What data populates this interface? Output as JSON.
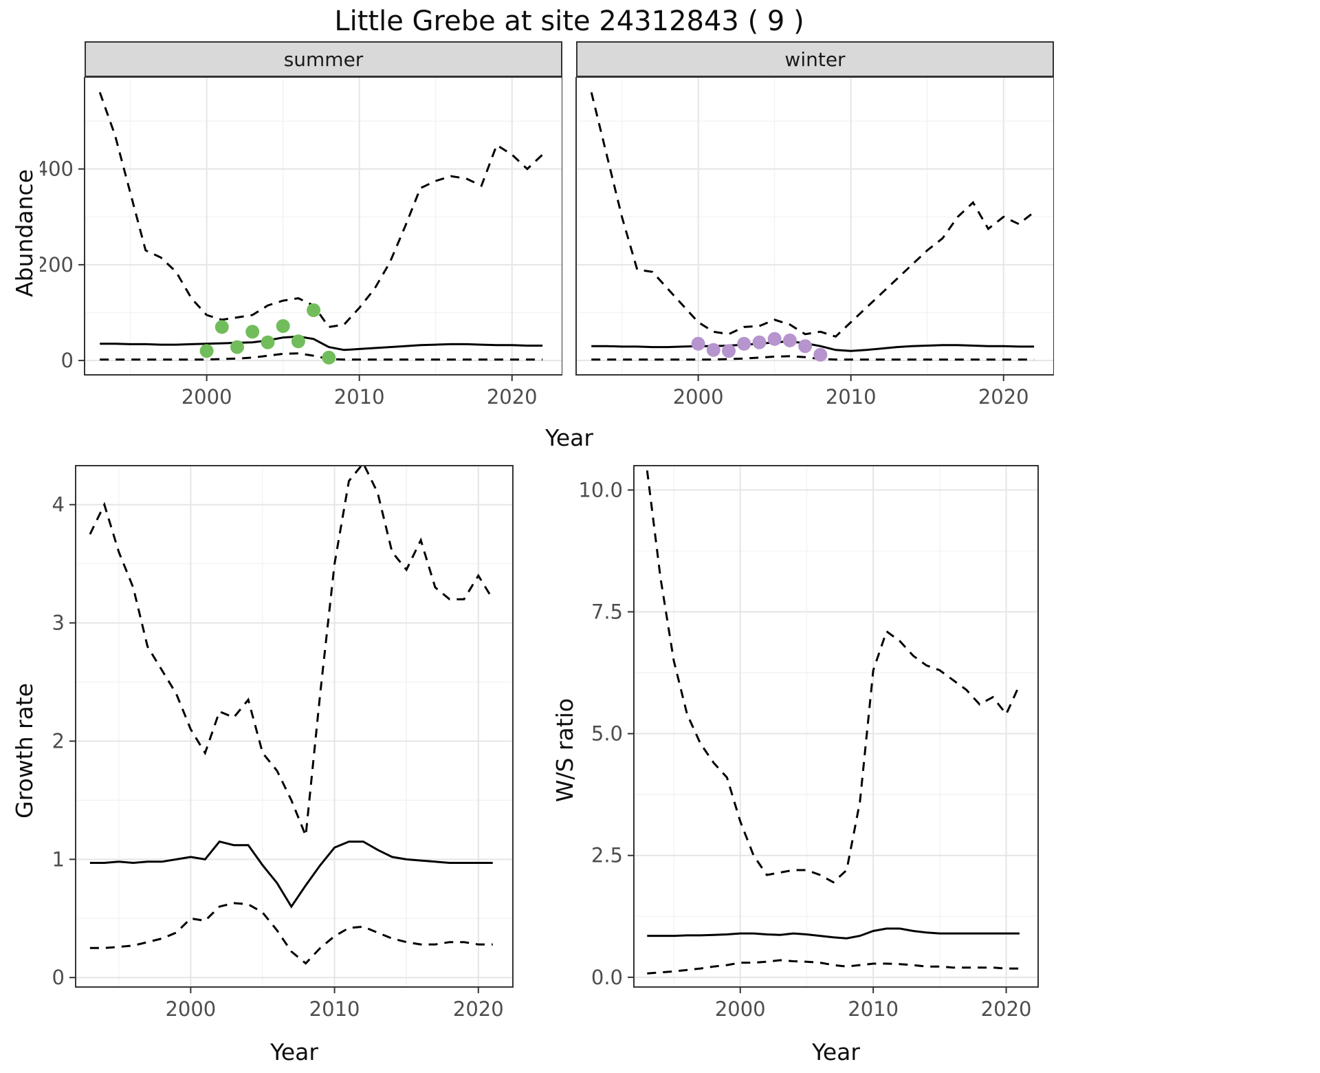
{
  "title": "Little Grebe at site 24312843 ( 9 )",
  "axes": {
    "abundance_ylabel": "Abundance",
    "top_xlabel": "Year",
    "growth_ylabel": "Growth rate",
    "growth_xlabel": "Year",
    "ws_ylabel": "W/S ratio",
    "ws_xlabel": "Year"
  },
  "facets": [
    {
      "label": "summer"
    },
    {
      "label": "winter"
    }
  ],
  "colors": {
    "line": "#000000",
    "grid_major": "#e5e5e5",
    "grid_minor": "#f2f2f2",
    "border": "#333333",
    "strip_bg": "#d9d9d9",
    "tick_text": "#4d4d4d",
    "summer_points": "#72BD5B",
    "winter_points": "#B694CD"
  },
  "chart_data": [
    {
      "id": "summer",
      "type": "line",
      "title": "summer",
      "xlabel": "Year",
      "ylabel": "Abundance",
      "xlim": [
        1992,
        2023.3
      ],
      "ylim": [
        -30,
        592
      ],
      "xticks": [
        2000,
        2010,
        2020
      ],
      "xtick_labels": [
        "2000",
        "2010",
        "2020"
      ],
      "yticks": [
        0,
        200,
        400
      ],
      "ytick_labels": [
        "0",
        "200",
        "400"
      ],
      "x": [
        1993,
        1994,
        1995,
        1996,
        1997,
        1998,
        1999,
        2000,
        2001,
        2002,
        2003,
        2004,
        2005,
        2006,
        2007,
        2008,
        2009,
        2010,
        2011,
        2012,
        2013,
        2014,
        2015,
        2016,
        2017,
        2018,
        2019,
        2020,
        2021,
        2022
      ],
      "series": [
        {
          "name": "upper_ci",
          "style": "dashed",
          "values": [
            560,
            470,
            350,
            230,
            215,
            185,
            130,
            95,
            85,
            90,
            95,
            115,
            125,
            130,
            115,
            70,
            75,
            110,
            150,
            205,
            280,
            360,
            375,
            385,
            380,
            365,
            450,
            430,
            400,
            430
          ]
        },
        {
          "name": "median",
          "style": "solid",
          "values": [
            35,
            35,
            34,
            34,
            33,
            33,
            34,
            35,
            36,
            37,
            38,
            42,
            48,
            50,
            45,
            28,
            22,
            24,
            26,
            28,
            30,
            32,
            33,
            34,
            34,
            33,
            32,
            32,
            31,
            31
          ]
        },
        {
          "name": "lower_ci",
          "style": "dashed",
          "values": [
            2,
            2,
            2,
            2,
            2,
            2,
            2,
            2,
            3,
            4,
            6,
            10,
            14,
            15,
            10,
            3,
            2,
            2,
            2,
            2,
            2,
            2,
            2,
            2,
            2,
            2,
            2,
            2,
            2,
            2
          ]
        }
      ],
      "points": {
        "name": "observed-counts",
        "color": "#72BD5B",
        "x": [
          2000,
          2001,
          2002,
          2003,
          2004,
          2005,
          2006,
          2007,
          2008
        ],
        "y": [
          20,
          70,
          28,
          60,
          38,
          72,
          40,
          105,
          6
        ]
      }
    },
    {
      "id": "winter",
      "type": "line",
      "title": "winter",
      "xlabel": "Year",
      "ylabel": "Abundance",
      "xlim": [
        1992,
        2023.3
      ],
      "ylim": [
        -30,
        592
      ],
      "xticks": [
        2000,
        2010,
        2020
      ],
      "xtick_labels": [
        "2000",
        "2010",
        "2020"
      ],
      "yticks": [
        0,
        200,
        400
      ],
      "ytick_labels": [
        "0",
        "200",
        "400"
      ],
      "x": [
        1993,
        1994,
        1995,
        1996,
        1997,
        1998,
        1999,
        2000,
        2001,
        2002,
        2003,
        2004,
        2005,
        2006,
        2007,
        2008,
        2009,
        2010,
        2011,
        2012,
        2013,
        2014,
        2015,
        2016,
        2017,
        2018,
        2019,
        2020,
        2021,
        2022
      ],
      "series": [
        {
          "name": "upper_ci",
          "style": "dashed",
          "values": [
            560,
            430,
            300,
            190,
            185,
            150,
            115,
            80,
            60,
            55,
            70,
            72,
            85,
            75,
            55,
            60,
            50,
            80,
            110,
            140,
            170,
            200,
            230,
            255,
            300,
            330,
            275,
            300,
            285,
            310
          ]
        },
        {
          "name": "median",
          "style": "solid",
          "values": [
            30,
            30,
            29,
            29,
            28,
            28,
            29,
            30,
            30,
            31,
            33,
            35,
            38,
            40,
            36,
            30,
            22,
            20,
            22,
            25,
            28,
            30,
            31,
            32,
            32,
            31,
            30,
            30,
            29,
            29
          ]
        },
        {
          "name": "lower_ci",
          "style": "dashed",
          "values": [
            2,
            2,
            2,
            2,
            2,
            2,
            2,
            2,
            2,
            3,
            4,
            6,
            8,
            9,
            7,
            3,
            2,
            2,
            2,
            2,
            2,
            2,
            2,
            2,
            2,
            2,
            2,
            2,
            2,
            2
          ]
        }
      ],
      "points": {
        "name": "observed-counts",
        "color": "#B694CD",
        "x": [
          2000,
          2001,
          2002,
          2003,
          2004,
          2005,
          2006,
          2007,
          2008
        ],
        "y": [
          35,
          22,
          20,
          35,
          38,
          45,
          42,
          30,
          12
        ]
      }
    },
    {
      "id": "growth",
      "type": "line",
      "title": "Growth rate",
      "xlabel": "Year",
      "ylabel": "Growth rate",
      "xlim": [
        1992,
        2022.4
      ],
      "ylim": [
        -0.08,
        4.33
      ],
      "xticks": [
        2000,
        2010,
        2020
      ],
      "xtick_labels": [
        "2000",
        "2010",
        "2020"
      ],
      "yticks": [
        0,
        1,
        2,
        3,
        4
      ],
      "ytick_labels": [
        "0",
        "1",
        "2",
        "3",
        "4"
      ],
      "x": [
        1993,
        1994,
        1995,
        1996,
        1997,
        1998,
        1999,
        2000,
        2001,
        2002,
        2003,
        2004,
        2005,
        2006,
        2007,
        2008,
        2009,
        2010,
        2011,
        2012,
        2013,
        2014,
        2015,
        2016,
        2017,
        2018,
        2019,
        2020,
        2021
      ],
      "series": [
        {
          "name": "upper_ci",
          "style": "dashed",
          "values": [
            3.75,
            4.0,
            3.6,
            3.3,
            2.8,
            2.6,
            2.4,
            2.1,
            1.9,
            2.25,
            2.2,
            2.35,
            1.9,
            1.75,
            1.5,
            1.2,
            2.4,
            3.5,
            4.2,
            4.35,
            4.1,
            3.6,
            3.45,
            3.7,
            3.3,
            3.2,
            3.2,
            3.4,
            3.2
          ]
        },
        {
          "name": "median",
          "style": "solid",
          "values": [
            0.97,
            0.97,
            0.98,
            0.97,
            0.98,
            0.98,
            1.0,
            1.02,
            1.0,
            1.15,
            1.12,
            1.12,
            0.95,
            0.8,
            0.6,
            0.78,
            0.95,
            1.1,
            1.15,
            1.15,
            1.08,
            1.02,
            1.0,
            0.99,
            0.98,
            0.97,
            0.97,
            0.97,
            0.97
          ]
        },
        {
          "name": "lower_ci",
          "style": "dashed",
          "values": [
            0.25,
            0.25,
            0.26,
            0.27,
            0.3,
            0.33,
            0.38,
            0.5,
            0.48,
            0.6,
            0.63,
            0.62,
            0.55,
            0.4,
            0.22,
            0.12,
            0.25,
            0.35,
            0.42,
            0.43,
            0.38,
            0.33,
            0.3,
            0.28,
            0.28,
            0.3,
            0.3,
            0.28,
            0.28
          ]
        }
      ]
    },
    {
      "id": "ws",
      "type": "line",
      "title": "W/S ratio",
      "xlabel": "Year",
      "ylabel": "W/S ratio",
      "xlim": [
        1992,
        2022.4
      ],
      "ylim": [
        -0.2,
        10.5
      ],
      "xticks": [
        2000,
        2010,
        2020
      ],
      "xtick_labels": [
        "2000",
        "2010",
        "2020"
      ],
      "yticks": [
        0,
        2.5,
        5,
        7.5,
        10
      ],
      "ytick_labels": [
        "0.0",
        "2.5",
        "5.0",
        "7.5",
        "10.0"
      ],
      "x": [
        1993,
        1994,
        1995,
        1996,
        1997,
        1998,
        1999,
        2000,
        2001,
        2002,
        2003,
        2004,
        2005,
        2006,
        2007,
        2008,
        2009,
        2010,
        2011,
        2012,
        2013,
        2014,
        2015,
        2016,
        2017,
        2018,
        2019,
        2020,
        2021
      ],
      "series": [
        {
          "name": "upper_ci",
          "style": "dashed",
          "values": [
            10.4,
            8.2,
            6.5,
            5.4,
            4.8,
            4.4,
            4.1,
            3.2,
            2.5,
            2.1,
            2.15,
            2.2,
            2.2,
            2.1,
            1.95,
            2.2,
            3.6,
            6.3,
            7.1,
            6.9,
            6.6,
            6.4,
            6.3,
            6.1,
            5.9,
            5.6,
            5.75,
            5.4,
            6.0
          ]
        },
        {
          "name": "median",
          "style": "solid",
          "values": [
            0.85,
            0.85,
            0.85,
            0.86,
            0.86,
            0.87,
            0.88,
            0.9,
            0.9,
            0.88,
            0.87,
            0.9,
            0.88,
            0.85,
            0.82,
            0.8,
            0.85,
            0.95,
            1.0,
            1.0,
            0.95,
            0.92,
            0.9,
            0.9,
            0.9,
            0.9,
            0.9,
            0.9,
            0.9
          ]
        },
        {
          "name": "lower_ci",
          "style": "dashed",
          "values": [
            0.08,
            0.1,
            0.12,
            0.15,
            0.18,
            0.22,
            0.25,
            0.3,
            0.3,
            0.32,
            0.35,
            0.33,
            0.32,
            0.3,
            0.25,
            0.22,
            0.25,
            0.28,
            0.28,
            0.27,
            0.25,
            0.22,
            0.22,
            0.2,
            0.2,
            0.2,
            0.2,
            0.18,
            0.18
          ]
        }
      ]
    }
  ]
}
